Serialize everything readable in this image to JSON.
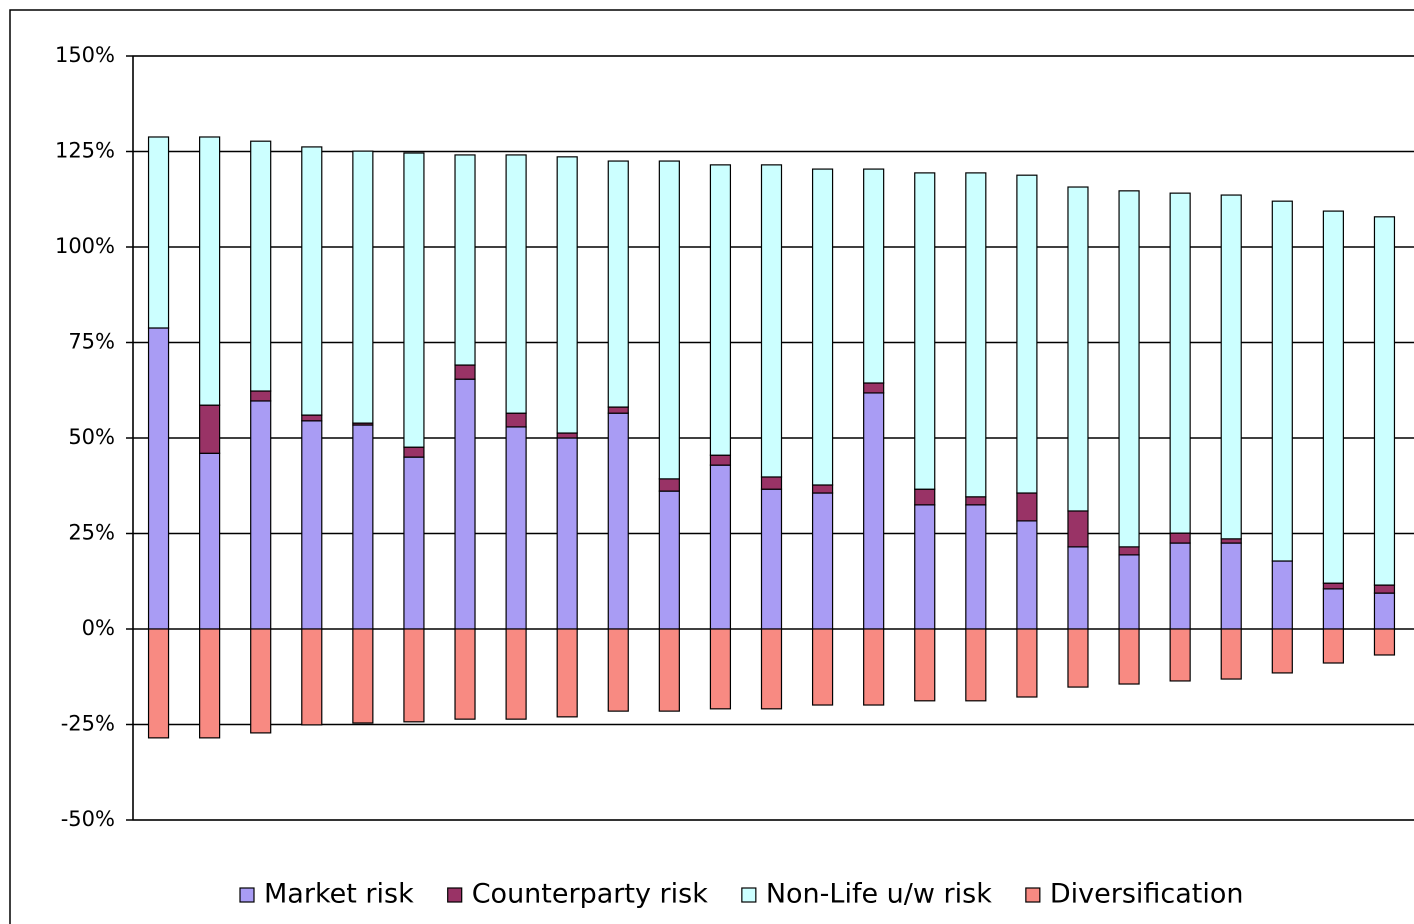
{
  "chart_data": {
    "type": "stacked-bar",
    "categories": [
      null,
      null,
      null,
      null,
      null,
      null,
      null,
      null,
      null,
      null,
      null,
      null,
      null,
      null,
      null,
      null,
      null,
      null,
      null,
      null,
      null,
      null,
      null,
      null,
      null
    ],
    "series": [
      {
        "name": "Market risk",
        "color": "#a99cf4",
        "values": [
          78.8,
          46,
          59.7,
          54.5,
          53.4,
          45,
          65.4,
          52.9,
          50,
          56.5,
          36.1,
          42.9,
          36.6,
          35.6,
          61.8,
          32.5,
          32.5,
          28.3,
          21.5,
          19.4,
          22.5,
          22.5,
          17.8,
          10.5,
          9.4
        ]
      },
      {
        "name": "Counterparty risk",
        "color": "#993366",
        "values": [
          0,
          12.6,
          2.6,
          1.5,
          0.5,
          2.6,
          3.7,
          3.6,
          1.3,
          1.6,
          3.2,
          2.6,
          3.2,
          2.1,
          2.6,
          4.1,
          2.1,
          7.3,
          9.4,
          2.1,
          2.6,
          1.1,
          0,
          1.5,
          2.1
        ]
      },
      {
        "name": "Non-Life u/w risk",
        "color": "#ccffff",
        "values": [
          50,
          70.2,
          65.4,
          70.2,
          71.2,
          77,
          55,
          67.6,
          72.3,
          64.4,
          83.2,
          76,
          81.7,
          82.7,
          56,
          82.8,
          84.8,
          83.2,
          84.8,
          93.2,
          89,
          90,
          94.2,
          97.4,
          96.4
        ]
      },
      {
        "name": "Diversification",
        "color": "#f88a82",
        "values": [
          -28.5,
          -28.5,
          -27.2,
          -25.1,
          -24.6,
          -24.3,
          -23.6,
          -23.6,
          -23,
          -21.5,
          -21.5,
          -20.9,
          -20.9,
          -19.9,
          -19.9,
          -18.8,
          -18.8,
          -17.8,
          -15.2,
          -14.4,
          -13.6,
          -13.1,
          -11.5,
          -8.9,
          -6.8
        ]
      }
    ],
    "ylim": [
      -50,
      150
    ],
    "yticks": [
      {
        "value": -50,
        "label": "-50%"
      },
      {
        "value": -25,
        "label": "-25%"
      },
      {
        "value": 0,
        "label": "0%"
      },
      {
        "value": 25,
        "label": "25%"
      },
      {
        "value": 50,
        "label": "50%"
      },
      {
        "value": 75,
        "label": "75%"
      },
      {
        "value": 100,
        "label": "100%"
      },
      {
        "value": 125,
        "label": "125%"
      },
      {
        "value": 150,
        "label": "150%"
      }
    ],
    "grid": true,
    "legend": "bottom"
  }
}
